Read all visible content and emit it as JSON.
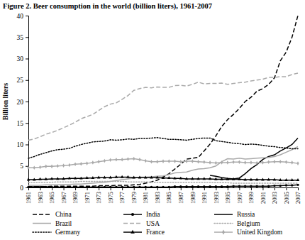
{
  "chart_data": {
    "type": "line",
    "title": "Figure 2. Beer consumption in the world (billion liters), 1961-2007",
    "y_label": "Billion liters",
    "x": [
      1961,
      1962,
      1963,
      1964,
      1965,
      1966,
      1967,
      1968,
      1969,
      1970,
      1971,
      1972,
      1973,
      1974,
      1975,
      1976,
      1977,
      1978,
      1979,
      1980,
      1981,
      1982,
      1983,
      1984,
      1985,
      1986,
      1987,
      1988,
      1989,
      1990,
      1991,
      1992,
      1993,
      1994,
      1995,
      1996,
      1997,
      1998,
      1999,
      2000,
      2001,
      2002,
      2003,
      2004,
      2005,
      2006,
      2007
    ],
    "xlim": [
      1961,
      2007
    ],
    "xticks": [
      1961,
      1963,
      1965,
      1967,
      1969,
      1971,
      1973,
      1975,
      1977,
      1979,
      1981,
      1983,
      1985,
      1987,
      1989,
      1991,
      1993,
      1995,
      1997,
      1999,
      2001,
      2003,
      2005,
      2007
    ],
    "ylim": [
      0,
      40
    ],
    "yticks": [
      0,
      5,
      10,
      15,
      20,
      25,
      30,
      35,
      40
    ],
    "grid": false,
    "legend": "bottom",
    "series": [
      {
        "name": "China",
        "color": "#000000",
        "line_style": "dashed",
        "values": [
          0.2,
          0.2,
          0.2,
          0.2,
          0.3,
          0.3,
          0.3,
          0.3,
          0.3,
          0.3,
          0.3,
          0.3,
          0.4,
          0.4,
          0.4,
          0.5,
          0.5,
          0.5,
          0.6,
          0.7,
          1.0,
          1.3,
          1.7,
          2.4,
          3.2,
          4.3,
          5.4,
          6.6,
          6.8,
          7.0,
          8.5,
          10.1,
          12.0,
          14.2,
          15.8,
          17.0,
          18.4,
          20.0,
          21.0,
          22.4,
          23.0,
          24.0,
          25.5,
          29.5,
          31.5,
          35.0,
          40.0
        ]
      },
      {
        "name": "India",
        "color": "#000000",
        "line_style": "solid",
        "marker": "circle",
        "values": [
          0.1,
          0.1,
          0.1,
          0.1,
          0.1,
          0.1,
          0.1,
          0.1,
          0.1,
          0.1,
          0.1,
          0.1,
          0.1,
          0.1,
          0.1,
          0.1,
          0.1,
          0.1,
          0.1,
          0.1,
          0.1,
          0.1,
          0.1,
          0.1,
          0.1,
          0.2,
          0.2,
          0.2,
          0.2,
          0.2,
          0.2,
          0.2,
          0.2,
          0.2,
          0.2,
          0.3,
          0.3,
          0.3,
          0.3,
          0.3,
          0.3,
          0.3,
          0.4,
          0.4,
          0.5,
          0.5,
          0.6
        ]
      },
      {
        "name": "Russia",
        "color": "#000000",
        "line_style": "solid",
        "values": [
          null,
          null,
          null,
          null,
          null,
          null,
          null,
          null,
          null,
          null,
          null,
          null,
          null,
          null,
          null,
          null,
          null,
          null,
          null,
          null,
          null,
          null,
          null,
          null,
          null,
          null,
          null,
          null,
          null,
          null,
          null,
          2.8,
          2.6,
          2.3,
          2.1,
          2.0,
          2.2,
          3.2,
          4.4,
          5.3,
          6.5,
          7.2,
          7.6,
          8.5,
          9.2,
          10.0,
          11.5
        ]
      },
      {
        "name": "Brazil",
        "color": "#aaaaaa",
        "line_style": "solid",
        "values": [
          0.5,
          0.5,
          0.5,
          0.6,
          0.6,
          0.6,
          0.7,
          0.7,
          0.8,
          0.8,
          0.9,
          1.0,
          1.1,
          1.2,
          1.4,
          1.6,
          1.8,
          2.0,
          2.2,
          2.4,
          2.4,
          2.5,
          2.6,
          2.7,
          3.0,
          3.4,
          3.5,
          3.6,
          4.0,
          4.3,
          4.4,
          4.6,
          5.0,
          6.0,
          6.7,
          6.6,
          6.8,
          6.6,
          6.7,
          6.8,
          6.9,
          7.0,
          7.2,
          7.6,
          8.2,
          8.8,
          9.5
        ]
      },
      {
        "name": "USA",
        "color": "#aaaaaa",
        "line_style": "dashed",
        "values": [
          11.0,
          11.3,
          11.8,
          12.4,
          12.8,
          13.3,
          13.9,
          14.5,
          15.2,
          16.0,
          16.5,
          17.0,
          17.9,
          18.8,
          19.4,
          19.7,
          20.5,
          21.4,
          22.6,
          23.0,
          23.3,
          23.2,
          23.4,
          23.3,
          23.3,
          23.7,
          23.8,
          23.6,
          24.0,
          24.5,
          24.1,
          24.2,
          24.2,
          24.3,
          24.0,
          24.2,
          24.4,
          24.5,
          24.8,
          25.0,
          25.2,
          25.6,
          25.6,
          25.8,
          25.8,
          26.3,
          26.6
        ]
      },
      {
        "name": "Belgium",
        "color": "#aaaaaa",
        "line_style": "dotted",
        "values": [
          1.1,
          1.1,
          1.2,
          1.2,
          1.2,
          1.3,
          1.3,
          1.3,
          1.3,
          1.4,
          1.4,
          1.4,
          1.4,
          1.4,
          1.4,
          1.4,
          1.4,
          1.3,
          1.3,
          1.3,
          1.3,
          1.2,
          1.2,
          1.2,
          1.2,
          1.2,
          1.2,
          1.2,
          1.2,
          1.2,
          1.2,
          1.2,
          1.1,
          1.1,
          1.1,
          1.0,
          1.0,
          1.0,
          1.0,
          1.0,
          1.0,
          1.0,
          1.0,
          1.0,
          1.0,
          1.0,
          1.0
        ]
      },
      {
        "name": "Germany",
        "color": "#000000",
        "line_style": "dotted",
        "values": [
          6.8,
          7.2,
          7.7,
          8.1,
          8.5,
          8.8,
          8.9,
          9.1,
          9.6,
          10.0,
          10.3,
          10.6,
          10.7,
          10.8,
          11.1,
          11.0,
          11.1,
          11.3,
          11.2,
          11.4,
          11.4,
          11.5,
          11.6,
          11.4,
          11.2,
          11.2,
          11.1,
          11.0,
          11.2,
          11.4,
          11.5,
          11.5,
          10.9,
          10.7,
          10.5,
          10.3,
          10.2,
          10.0,
          10.1,
          10.0,
          9.8,
          9.6,
          9.5,
          9.3,
          9.2,
          9.0,
          9.0
        ]
      },
      {
        "name": "France",
        "color": "#000000",
        "line_style": "solid",
        "marker": "triangle",
        "values": [
          1.8,
          1.8,
          1.9,
          1.9,
          2.0,
          2.0,
          2.0,
          2.1,
          2.1,
          2.1,
          2.2,
          2.2,
          2.3,
          2.3,
          2.3,
          2.4,
          2.4,
          2.4,
          2.3,
          2.3,
          2.3,
          2.3,
          2.3,
          2.2,
          2.2,
          2.1,
          2.1,
          2.0,
          2.0,
          2.0,
          2.0,
          2.0,
          1.9,
          1.9,
          1.9,
          1.9,
          1.9,
          1.8,
          1.8,
          1.8,
          1.8,
          1.8,
          1.8,
          1.7,
          1.7,
          1.7,
          1.7
        ]
      },
      {
        "name": "United Kingdom",
        "color": "#aaaaaa",
        "line_style": "solid",
        "marker": "diamond",
        "values": [
          4.6,
          4.6,
          4.7,
          4.9,
          4.9,
          5.0,
          5.1,
          5.2,
          5.4,
          5.5,
          5.6,
          5.8,
          6.0,
          6.2,
          6.4,
          6.5,
          6.5,
          6.6,
          6.7,
          6.5,
          6.2,
          6.0,
          6.0,
          6.1,
          6.1,
          6.1,
          6.0,
          6.1,
          6.1,
          6.0,
          5.9,
          5.8,
          5.7,
          5.8,
          5.8,
          5.9,
          5.9,
          5.8,
          5.8,
          5.7,
          5.8,
          5.9,
          6.0,
          6.0,
          5.9,
          5.8,
          5.6
        ]
      }
    ]
  }
}
